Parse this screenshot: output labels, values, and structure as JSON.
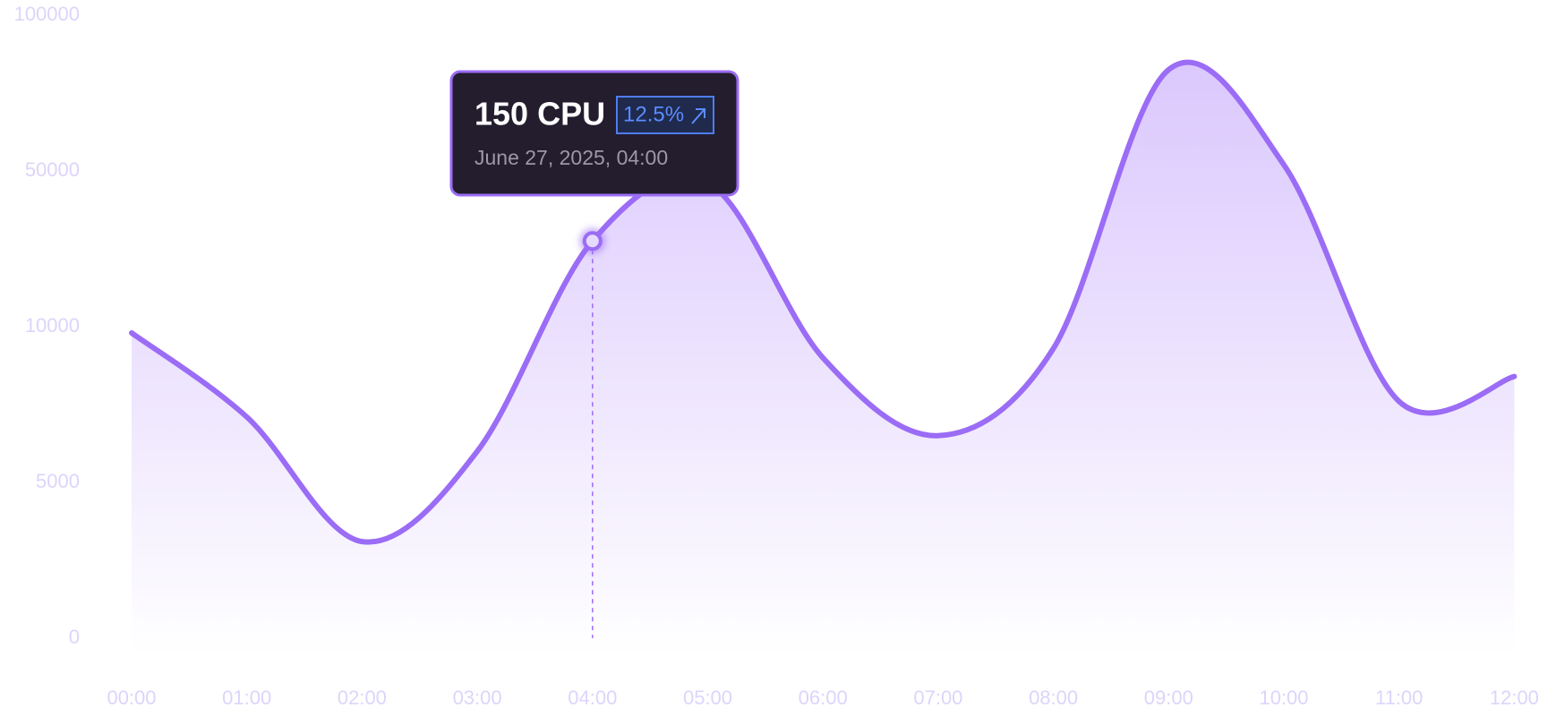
{
  "chart_data": {
    "type": "area",
    "categories": [
      "00:00",
      "01:00",
      "02:00",
      "03:00",
      "04:00",
      "05:00",
      "06:00",
      "07:00",
      "08:00",
      "09:00",
      "10:00",
      "11:00",
      "12:00"
    ],
    "series": [
      {
        "color": "#9b6cf5",
        "values": [
          9800,
          7100,
          3100,
          6000,
          32000,
          47000,
          9000,
          6500,
          9300,
          82500,
          52000,
          7600,
          8400
        ]
      }
    ],
    "ylim": [
      0,
      100000
    ],
    "yticks": [
      0,
      5000,
      10000,
      50000,
      100000
    ],
    "grid": false,
    "active_category": "04:00",
    "tooltip": {
      "title": "150 CPU",
      "change": "12.5%",
      "date": "June 27, 2025, 04:00"
    }
  }
}
